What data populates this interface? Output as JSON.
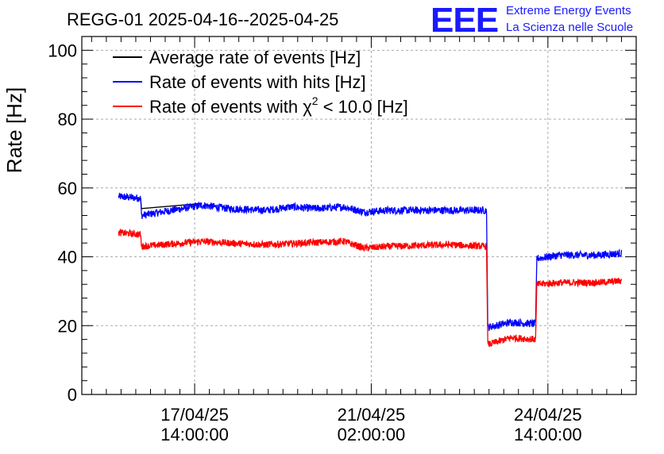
{
  "chart_data": {
    "type": "line",
    "title": "REGG-01 2025-04-16--2025-04-25",
    "logo": {
      "mark": "EEE",
      "line1": "Extreme Energy Events",
      "line2": "La Scienza nelle Scuole"
    },
    "ylabel": "Rate [Hz]",
    "ylim": [
      0,
      104
    ],
    "y_ticks": [
      0,
      20,
      40,
      60,
      80,
      100
    ],
    "x_range_hours": [
      0,
      226
    ],
    "x_ticks": [
      {
        "hour": 46,
        "line1": "17/04/25",
        "line2": "14:00:00"
      },
      {
        "hour": 118,
        "line1": "21/04/25",
        "line2": "02:00:00"
      },
      {
        "hour": 190,
        "line1": "24/04/25",
        "line2": "14:00:00"
      }
    ],
    "legend": {
      "position": "top-left",
      "entries": [
        {
          "label": "Average rate of events [Hz]",
          "color": "#000000"
        },
        {
          "label": "Rate of events with hits [Hz]",
          "color": "#0000ff"
        },
        {
          "label": "Rate of events with χ² < 10.0 [Hz]",
          "label_prefix": "Rate of events with ",
          "label_chi": "χ",
          "label_sup": "2",
          "label_suffix": " < 10.0 [Hz]",
          "color": "#ff0000"
        }
      ]
    },
    "series": [
      {
        "name": "Average rate of events [Hz]",
        "color": "#000000",
        "points": [
          [
            15,
            57.5
          ],
          [
            24,
            57.0
          ],
          [
            24.3,
            54.0
          ],
          [
            49,
            55.5
          ]
        ]
      },
      {
        "name": "Rate of events with hits [Hz]",
        "color": "#0000ff",
        "noise": 1.1,
        "segments": [
          [
            [
              15,
              57.5
            ],
            [
              24,
              57.0
            ],
            [
              24.3,
              52.0
            ],
            [
              49,
              55.0
            ],
            [
              60,
              54.0
            ],
            [
              75,
              53.5
            ],
            [
              85,
              54.5
            ],
            [
              95,
              54.0
            ],
            [
              107,
              54.5
            ],
            [
              115,
              53.0
            ],
            [
              125,
              53.5
            ],
            [
              150,
              53.5
            ],
            [
              165,
              53.5
            ]
          ],
          [
            [
              165.5,
              19.5
            ],
            [
              175,
              21.0
            ],
            [
              185,
              20.5
            ]
          ],
          [
            [
              185.5,
              39.5
            ],
            [
              195,
              40.5
            ],
            [
              210,
              40.5
            ],
            [
              220,
              41.0
            ]
          ]
        ]
      },
      {
        "name": "Rate of events with χ² < 10.0 [Hz]",
        "color": "#ff0000",
        "noise": 1.0,
        "segments": [
          [
            [
              15,
              47.0
            ],
            [
              24,
              46.5
            ],
            [
              24.3,
              43.0
            ],
            [
              49,
              44.5
            ],
            [
              60,
              44.0
            ],
            [
              75,
              43.5
            ],
            [
              90,
              44.0
            ],
            [
              107,
              44.5
            ],
            [
              115,
              42.5
            ],
            [
              125,
              43.0
            ],
            [
              150,
              43.5
            ],
            [
              165,
              43.0
            ]
          ],
          [
            [
              165.5,
              14.5
            ],
            [
              175,
              16.5
            ],
            [
              185,
              16.0
            ]
          ],
          [
            [
              185.5,
              32.0
            ],
            [
              195,
              32.5
            ],
            [
              210,
              32.5
            ],
            [
              220,
              33.0
            ]
          ]
        ]
      }
    ]
  }
}
